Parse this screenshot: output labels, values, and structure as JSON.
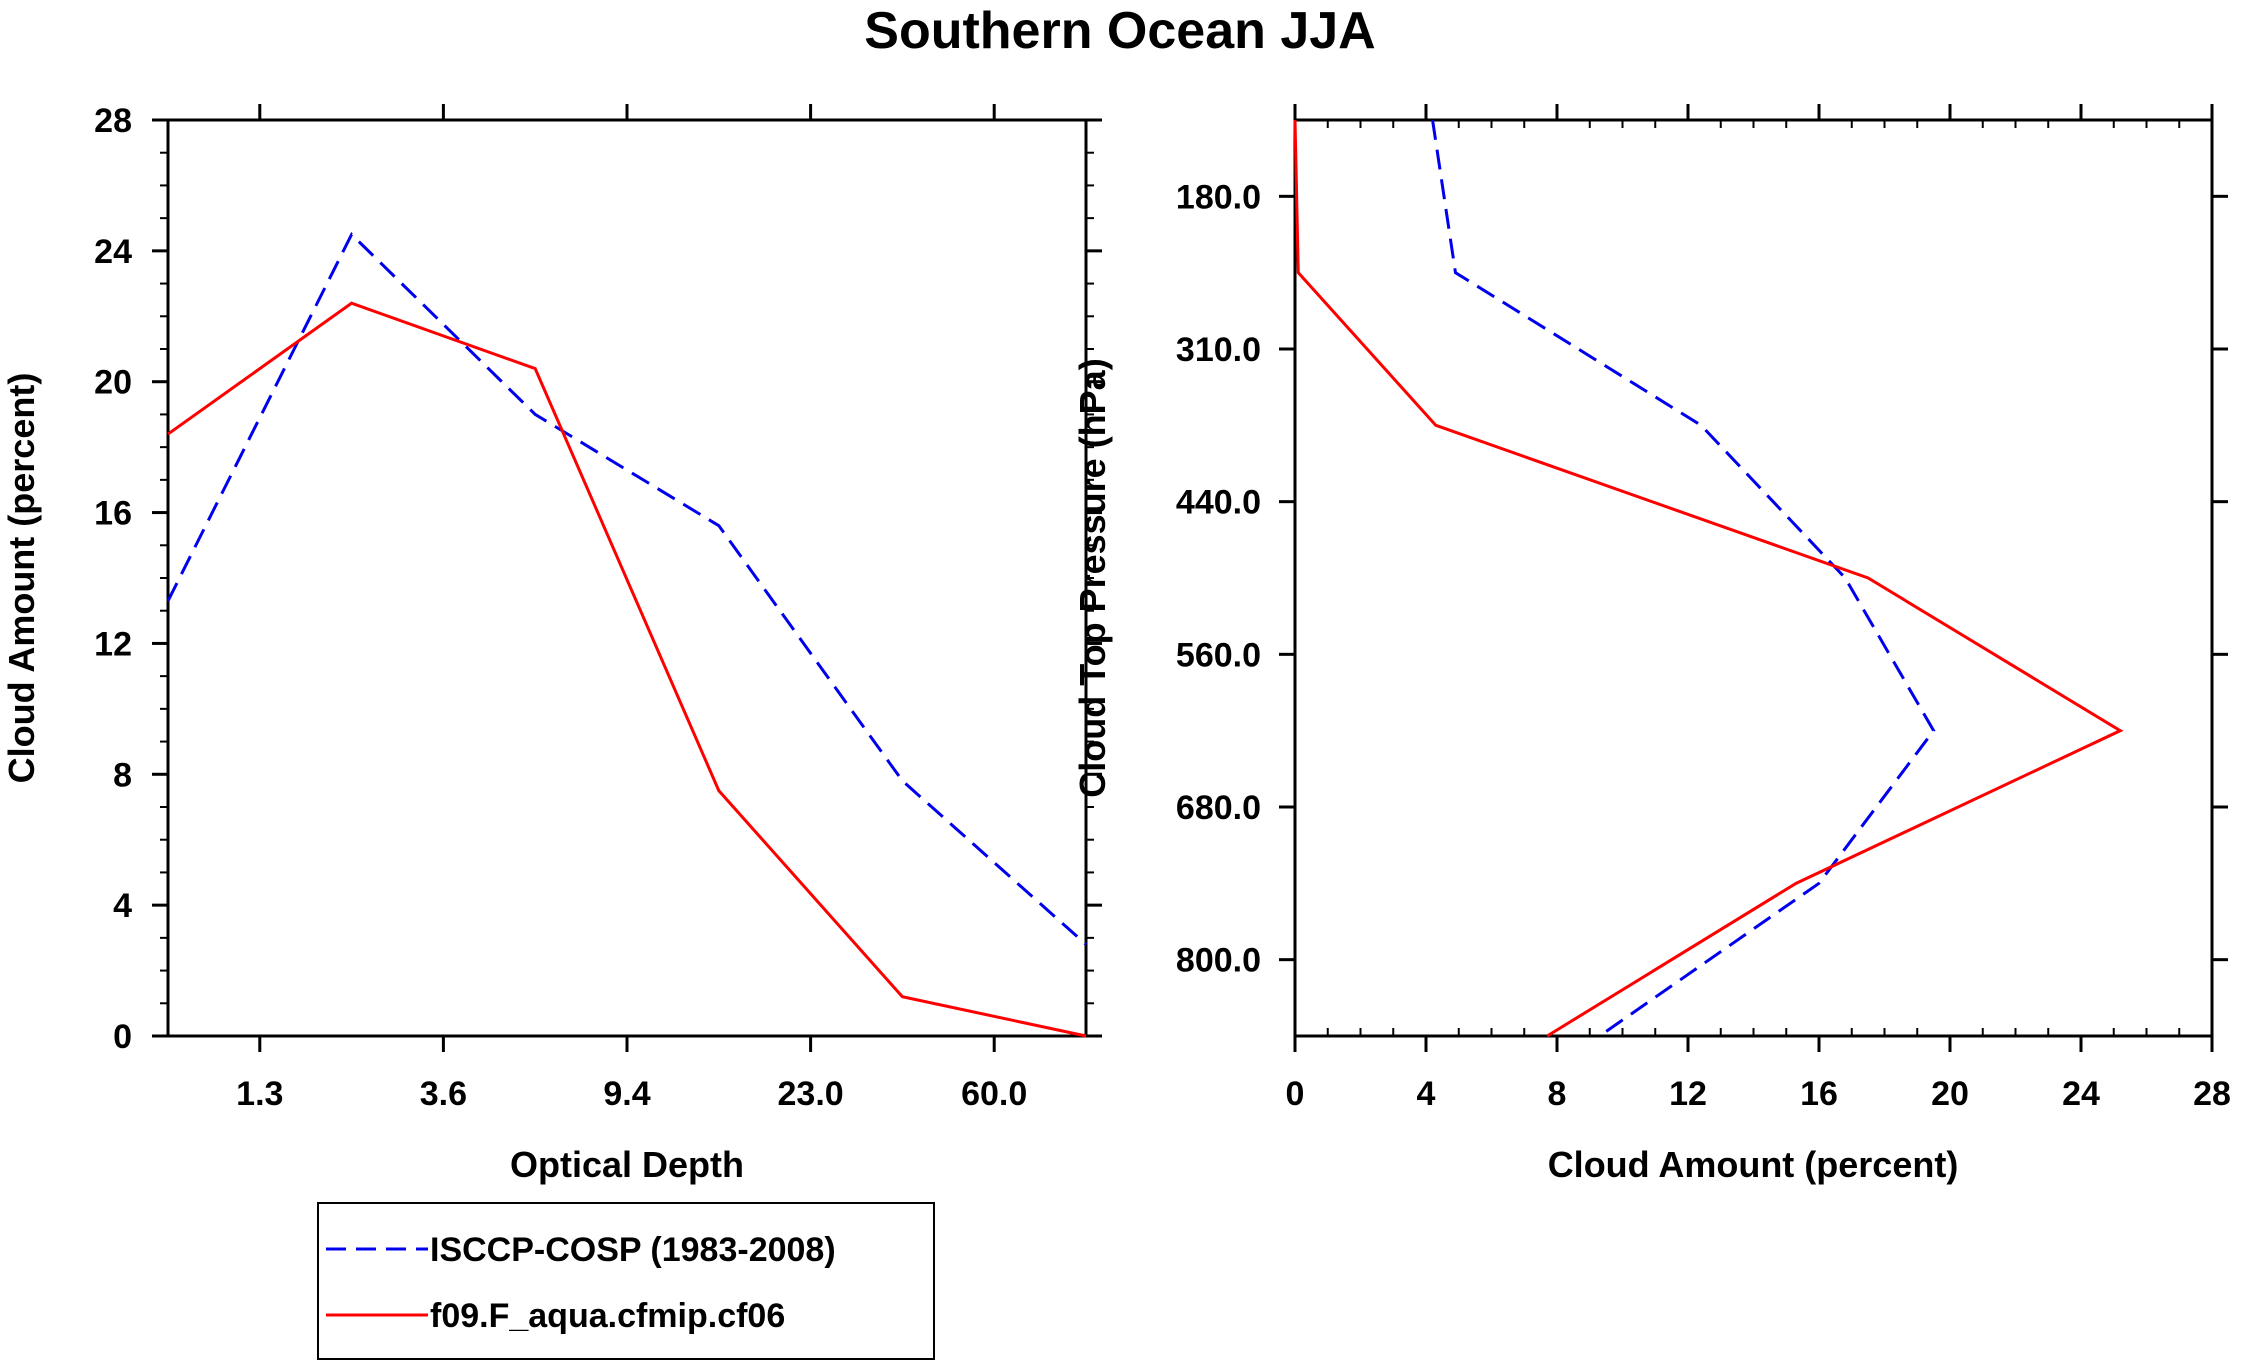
{
  "title": "Southern Ocean JJA",
  "chart_data": [
    {
      "type": "line",
      "xlabel": "Optical Depth",
      "ylabel": "Cloud Amount (percent)",
      "x_tick_labels": [
        "1.3",
        "3.6",
        "9.4",
        "23.0",
        "60.0"
      ],
      "x_index_range": [
        0,
        5
      ],
      "ylim": [
        0,
        28
      ],
      "y_ticks": [
        0,
        4,
        8,
        12,
        16,
        20,
        24,
        28
      ],
      "series": [
        {
          "name": "ISCCP-COSP (1983-2008)",
          "style": "dashed",
          "color": "#0000ee",
          "x": [
            0,
            1,
            2,
            3,
            4,
            5
          ],
          "values": [
            13.3,
            24.5,
            19.0,
            15.6,
            7.8,
            2.8
          ]
        },
        {
          "name": "f09.F_aqua.cfmip.cf06",
          "style": "solid",
          "color": "#ff0000",
          "x": [
            0,
            1,
            2,
            3,
            4,
            5
          ],
          "values": [
            18.4,
            22.4,
            20.4,
            7.5,
            1.2,
            0.0
          ]
        }
      ]
    },
    {
      "type": "line",
      "xlabel": "Cloud Amount (percent)",
      "ylabel": "Cloud Top Pressure (hPa)",
      "xlim": [
        0,
        28
      ],
      "x_ticks": [
        0,
        4,
        8,
        12,
        16,
        20,
        24,
        28
      ],
      "y_tick_labels": [
        "180.0",
        "310.0",
        "440.0",
        "560.0",
        "680.0",
        "800.0"
      ],
      "y_index_range": [
        0,
        6
      ],
      "series": [
        {
          "name": "ISCCP-COSP (1983-2008)",
          "style": "dashed",
          "color": "#0000ee",
          "y": [
            0,
            1,
            2,
            3,
            4,
            5,
            6
          ],
          "values": [
            4.2,
            4.9,
            12.4,
            16.8,
            19.5,
            16.0,
            9.3
          ]
        },
        {
          "name": "f09.F_aqua.cfmip.cf06",
          "style": "solid",
          "color": "#ff0000",
          "y": [
            0,
            1,
            2,
            3,
            4,
            5,
            6
          ],
          "values": [
            0.0,
            0.1,
            4.3,
            17.5,
            25.2,
            15.3,
            7.7
          ]
        }
      ]
    }
  ],
  "legend": [
    {
      "label": "ISCCP-COSP (1983-2008)",
      "style": "dashed",
      "color": "#0000ee"
    },
    {
      "label": "f09.F_aqua.cfmip.cf06",
      "style": "solid",
      "color": "#ff0000"
    }
  ]
}
